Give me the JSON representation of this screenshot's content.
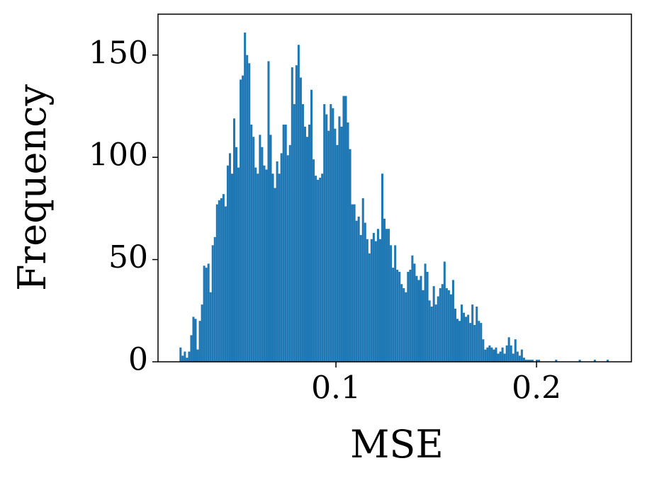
{
  "chart_data": {
    "type": "histogram",
    "xlabel": "MSE",
    "ylabel": "Frequency",
    "color": "#1f77b4",
    "bins": [
      0.022,
      0.02307,
      0.02414,
      0.02521,
      0.02628,
      0.02735,
      0.02842,
      0.02949,
      0.03056,
      0.03163,
      0.0327,
      0.03377,
      0.03484,
      0.03591,
      0.03698,
      0.03805,
      0.03912,
      0.04019,
      0.04126,
      0.04233,
      0.0434,
      0.04447,
      0.04554,
      0.04661,
      0.04768,
      0.04875,
      0.04982,
      0.05089,
      0.05196,
      0.05303,
      0.0541,
      0.05517,
      0.05624,
      0.05731,
      0.05838,
      0.05945,
      0.06052,
      0.06159,
      0.06266,
      0.06373,
      0.0648,
      0.06587,
      0.06694,
      0.06801,
      0.06908,
      0.07015,
      0.07122,
      0.07229,
      0.07336,
      0.07443,
      0.0755,
      0.07657,
      0.07764,
      0.07871,
      0.07978,
      0.08085,
      0.08192,
      0.08299,
      0.08406,
      0.08513,
      0.0862,
      0.08727,
      0.08834,
      0.08941,
      0.09048,
      0.09155,
      0.09262,
      0.09369,
      0.09476,
      0.09583,
      0.0969,
      0.09797,
      0.09904,
      0.10011,
      0.10118,
      0.10225,
      0.10332,
      0.10439,
      0.10546,
      0.10653,
      0.1076,
      0.10867,
      0.10974,
      0.11081,
      0.11188,
      0.11295,
      0.11402,
      0.11509,
      0.11616,
      0.11723,
      0.1183,
      0.11937,
      0.12044,
      0.12151,
      0.12258,
      0.12365,
      0.12472,
      0.12579,
      0.12686,
      0.12793,
      0.129,
      0.13007,
      0.13114,
      0.13221,
      0.13328,
      0.13435,
      0.13542,
      0.13649,
      0.13756,
      0.13863,
      0.1397,
      0.14077,
      0.14184,
      0.14291,
      0.14398,
      0.14505,
      0.14612,
      0.14719,
      0.14826,
      0.14933,
      0.1504,
      0.15147,
      0.15254,
      0.15361,
      0.15468,
      0.15575,
      0.15682,
      0.15789,
      0.15896,
      0.16003,
      0.1611,
      0.16217,
      0.16324,
      0.16431,
      0.16538,
      0.16645,
      0.16752,
      0.16859,
      0.16966,
      0.17073,
      0.1718,
      0.17287,
      0.17394,
      0.17501,
      0.17608,
      0.17715,
      0.17822,
      0.17929,
      0.18036,
      0.18143,
      0.1825,
      0.18357,
      0.18464,
      0.18571,
      0.18678,
      0.18785,
      0.18892,
      0.18999,
      0.19106,
      0.19213,
      0.1932,
      0.19427,
      0.19534,
      0.19641,
      0.19748,
      0.19855,
      0.19962,
      0.20069,
      0.20176,
      0.20283,
      0.2039,
      0.20497,
      0.20604,
      0.20711,
      0.20818,
      0.20925,
      0.21032,
      0.21139,
      0.21246,
      0.21353,
      0.2146,
      0.21567,
      0.21674,
      0.21781,
      0.21888,
      0.21995,
      0.22102,
      0.22209,
      0.22316,
      0.22423,
      0.2253,
      0.22637,
      0.22744,
      0.22851,
      0.22958,
      0.23065,
      0.23172,
      0.23279,
      0.23386,
      0.23493,
      0.236
    ],
    "values": [
      7,
      3,
      5,
      2,
      5,
      13,
      22,
      21,
      6,
      20,
      28,
      47,
      46,
      48,
      34,
      57,
      61,
      77,
      79,
      80,
      82,
      76,
      96,
      102,
      92,
      119,
      105,
      95,
      138,
      140,
      161,
      150,
      146,
      116,
      110,
      95,
      92,
      111,
      105,
      96,
      94,
      147,
      111,
      92,
      85,
      98,
      92,
      102,
      116,
      116,
      101,
      106,
      144,
      126,
      145,
      155,
      139,
      126,
      115,
      110,
      116,
      133,
      99,
      91,
      89,
      90,
      92,
      126,
      121,
      113,
      126,
      124,
      114,
      106,
      120,
      115,
      130,
      130,
      117,
      104,
      77,
      77,
      69,
      71,
      62,
      80,
      68,
      60,
      53,
      60,
      63,
      59,
      65,
      60,
      92,
      70,
      65,
      65,
      57,
      46,
      57,
      45,
      44,
      38,
      36,
      34,
      44,
      45,
      52,
      48,
      42,
      40,
      42,
      35,
      48,
      44,
      30,
      27,
      37,
      28,
      32,
      36,
      38,
      49,
      36,
      35,
      33,
      40,
      26,
      21,
      20,
      28,
      24,
      22,
      23,
      19,
      28,
      18,
      27,
      20,
      19,
      11,
      6,
      7,
      8,
      7,
      6,
      7,
      4,
      5,
      7,
      4,
      8,
      12,
      8,
      4,
      11,
      5,
      3,
      6,
      2,
      1,
      1,
      1,
      1,
      0,
      1,
      1,
      0,
      0,
      0,
      0,
      0,
      0,
      0,
      1,
      0,
      0,
      0,
      0,
      0,
      0,
      0,
      0,
      0,
      0,
      1,
      0,
      0,
      0,
      0,
      0,
      0,
      1,
      0,
      0,
      0,
      0,
      0,
      1
    ],
    "xlim": [
      0.0113,
      0.2473
    ],
    "xticks": [
      0.1,
      0.2
    ],
    "ylim": [
      0,
      170
    ],
    "yticks": [
      0,
      50,
      100,
      150
    ]
  }
}
